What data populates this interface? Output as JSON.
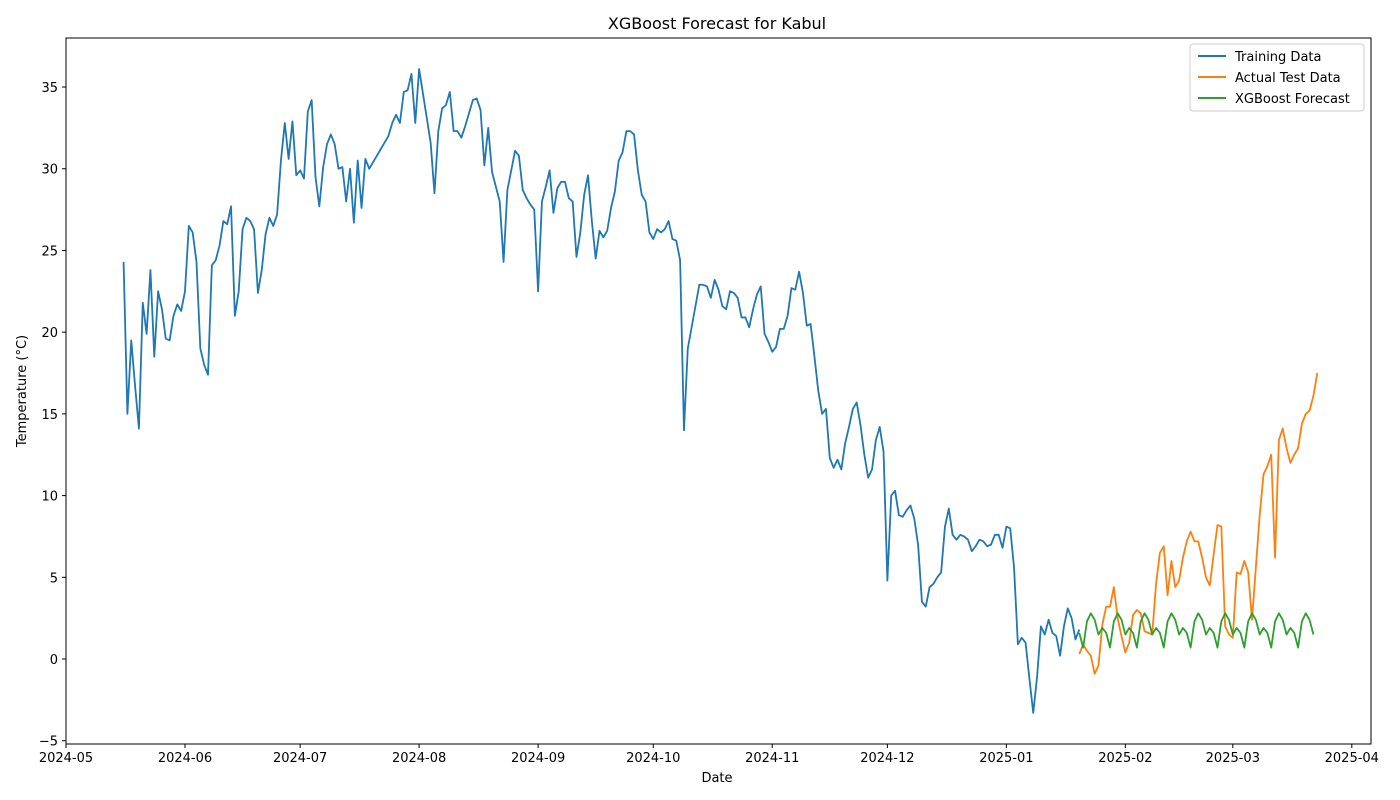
{
  "chart_data": {
    "type": "line",
    "title": "XGBoost Forecast for Kabul",
    "xlabel": "Date",
    "ylabel": "Temperature (°C)",
    "xlim": [
      "2024-05-01",
      "2025-04-06"
    ],
    "ylim": [
      -5.2,
      38
    ],
    "grid": false,
    "legend_position": "top-right",
    "x_ticks": [
      "2024-05-01",
      "2024-06-01",
      "2024-07-01",
      "2024-08-01",
      "2024-09-01",
      "2024-10-01",
      "2024-11-01",
      "2024-12-01",
      "2025-01-01",
      "2025-02-01",
      "2025-03-01",
      "2025-04-01"
    ],
    "x_tick_labels": [
      "2024-05",
      "2024-06",
      "2024-07",
      "2024-08",
      "2024-09",
      "2024-10",
      "2024-11",
      "2024-12",
      "2025-01",
      "2025-02",
      "2025-03",
      "2025-04"
    ],
    "y_ticks": [
      -5,
      0,
      5,
      10,
      15,
      20,
      25,
      30,
      35
    ],
    "y_tick_labels": [
      "−5",
      "0",
      "5",
      "10",
      "15",
      "20",
      "25",
      "30",
      "35"
    ],
    "series": [
      {
        "name": "Training Data",
        "color": "#1f77b4",
        "start_date": "2024-05-16",
        "values": [
          24.3,
          15.0,
          19.5,
          16.7,
          14.1,
          21.8,
          19.9,
          23.8,
          18.5,
          22.5,
          21.4,
          19.6,
          19.5,
          21.0,
          21.7,
          21.3,
          22.5,
          26.5,
          26.1,
          24.3,
          19.0,
          18.0,
          17.4,
          24.1,
          24.4,
          25.3,
          26.8,
          26.6,
          27.7,
          21.0,
          22.5,
          26.3,
          27.0,
          26.8,
          26.3,
          22.4,
          23.8,
          26.0,
          27.0,
          26.5,
          27.2,
          30.5,
          32.8,
          30.6,
          32.9,
          29.6,
          29.9,
          29.4,
          33.5,
          34.2,
          29.5,
          27.7,
          30.1,
          31.5,
          32.1,
          31.5,
          30.0,
          30.1,
          28.0,
          30.0,
          26.7,
          30.5,
          27.6,
          30.6,
          30.0,
          30.4,
          30.8,
          31.2,
          31.6,
          32.0,
          32.8,
          33.3,
          32.8,
          34.7,
          34.8,
          35.8,
          32.8,
          36.1,
          34.6,
          33.1,
          31.6,
          28.5,
          32.3,
          33.7,
          33.9,
          34.7,
          32.3,
          32.3,
          31.9,
          32.6,
          33.4,
          34.2,
          34.3,
          33.6,
          30.2,
          32.5,
          29.8,
          28.9,
          28.0,
          24.3,
          28.7,
          29.9,
          31.1,
          30.8,
          28.7,
          28.2,
          27.8,
          27.5,
          22.5,
          28.0,
          28.9,
          29.9,
          27.3,
          28.8,
          29.2,
          29.2,
          28.2,
          28.0,
          24.6,
          26.1,
          28.4,
          29.6,
          26.8,
          24.5,
          26.2,
          25.8,
          26.2,
          27.6,
          28.6,
          30.5,
          31.0,
          32.3,
          32.3,
          32.1,
          29.9,
          28.4,
          28.0,
          26.1,
          25.7,
          26.3,
          26.1,
          26.3,
          26.8,
          25.7,
          25.6,
          24.4,
          14.0,
          19.0,
          20.3,
          21.6,
          22.9,
          22.9,
          22.8,
          22.1,
          23.2,
          22.6,
          21.6,
          21.4,
          22.5,
          22.4,
          22.1,
          20.9,
          20.9,
          20.3,
          21.4,
          22.3,
          22.8,
          19.9,
          19.4,
          18.8,
          19.1,
          20.2,
          20.2,
          21.0,
          22.7,
          22.6,
          23.7,
          22.4,
          20.4,
          20.5,
          18.5,
          16.4,
          15.0,
          15.3,
          12.3,
          11.7,
          12.2,
          11.6,
          13.2,
          14.2,
          15.3,
          15.7,
          14.3,
          12.5,
          11.1,
          11.6,
          13.4,
          14.2,
          12.7,
          4.8,
          10.0,
          10.3,
          8.8,
          8.7,
          9.1,
          9.4,
          8.6,
          7.0,
          3.5,
          3.2,
          4.4,
          4.6,
          5.0,
          5.3,
          8.1,
          9.2,
          7.6,
          7.3,
          7.6,
          7.5,
          7.3,
          6.6,
          6.9,
          7.3,
          7.2,
          6.9,
          7.0,
          7.6,
          7.6,
          6.8,
          8.1,
          8.0,
          5.6,
          0.9,
          1.3,
          1.0,
          -1.2,
          -3.3,
          -1.1,
          2.0,
          1.5,
          2.4,
          1.6,
          1.4,
          0.2,
          2.0,
          3.1,
          2.5,
          1.2,
          1.8
        ]
      },
      {
        "name": "Actual Test Data",
        "color": "#ff7f0e",
        "start_date": "2025-01-20",
        "values": [
          0.3,
          0.9,
          0.5,
          0.2,
          -0.9,
          -0.4,
          2.1,
          3.2,
          3.2,
          4.4,
          2.5,
          1.4,
          0.4,
          1.0,
          2.7,
          3.0,
          2.8,
          1.7,
          1.6,
          1.5,
          4.6,
          6.5,
          6.9,
          3.9,
          6.0,
          4.4,
          4.8,
          6.2,
          7.2,
          7.8,
          7.2,
          7.2,
          6.2,
          5.0,
          4.5,
          6.4,
          8.2,
          8.1,
          2.0,
          1.5,
          1.3,
          5.3,
          5.2,
          6.0,
          5.3,
          2.4,
          5.6,
          8.8,
          11.3,
          11.8,
          12.5,
          6.2,
          13.4,
          14.1,
          12.9,
          12.0,
          12.5,
          12.9,
          14.4,
          15.0,
          15.2,
          16.1,
          17.5
        ]
      },
      {
        "name": "XGBoost Forecast",
        "color": "#2ca02c",
        "start_date": "2025-01-20",
        "values": [
          1.6,
          0.7,
          2.3,
          2.8,
          2.4,
          1.5,
          1.9,
          1.6,
          0.7,
          2.3,
          2.8,
          2.4,
          1.5,
          1.9,
          1.6,
          0.7,
          2.3,
          2.8,
          2.4,
          1.5,
          1.9,
          1.6,
          0.7,
          2.3,
          2.8,
          2.4,
          1.5,
          1.9,
          1.6,
          0.7,
          2.3,
          2.8,
          2.4,
          1.5,
          1.9,
          1.6,
          0.7,
          2.3,
          2.8,
          2.4,
          1.5,
          1.9,
          1.6,
          0.7,
          2.3,
          2.8,
          2.4,
          1.5,
          1.9,
          1.6,
          0.7,
          2.3,
          2.8,
          2.4,
          1.5,
          1.9,
          1.6,
          0.7,
          2.3,
          2.8,
          2.4,
          1.5
        ]
      }
    ]
  }
}
